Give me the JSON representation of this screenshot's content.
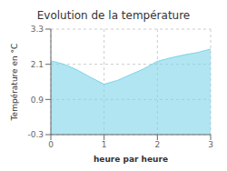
{
  "chart_data": {
    "type": "area",
    "title": "Evolution de la température",
    "xlabel": "heure par heure",
    "ylabel": "Température en °C",
    "x": [
      0,
      0.25,
      0.5,
      0.75,
      1.0,
      1.25,
      1.5,
      1.75,
      2.0,
      2.25,
      2.5,
      2.75,
      3.0
    ],
    "values": [
      2.22,
      2.1,
      1.9,
      1.65,
      1.42,
      1.55,
      1.75,
      1.95,
      2.2,
      2.32,
      2.42,
      2.5,
      2.62
    ],
    "xlim": [
      0,
      3
    ],
    "ylim": [
      -0.3,
      3.3
    ],
    "xticks": [
      0,
      1,
      2,
      3
    ],
    "yticks": [
      -0.3,
      0.9,
      2.1,
      3.3
    ],
    "color": "#7dd4e8",
    "grid": true
  }
}
